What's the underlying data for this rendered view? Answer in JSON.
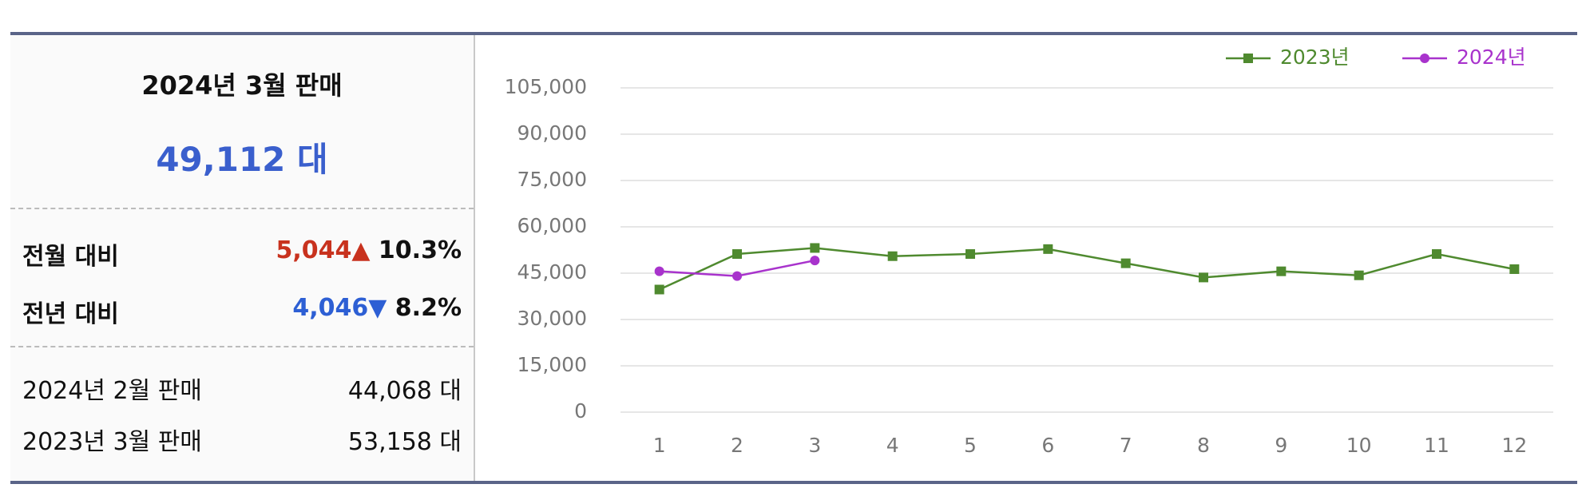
{
  "summary": {
    "title": "2024년 3월 판매",
    "total": "49,112 대",
    "rows": [
      {
        "label": "전월 대비",
        "change": "5,044",
        "arrow": "▲",
        "pct": "10.3%"
      },
      {
        "label": "전년 대비",
        "change": "4,046",
        "arrow": "▼",
        "pct": "8.2%"
      }
    ],
    "details": [
      {
        "label": "2024년 2월 판매",
        "value": "44,068 대"
      },
      {
        "label": "2023년 3월 판매",
        "value": "53,158 대"
      }
    ]
  },
  "chart_data": {
    "type": "line",
    "categories": [
      "1",
      "2",
      "3",
      "4",
      "5",
      "6",
      "7",
      "8",
      "9",
      "10",
      "11",
      "12"
    ],
    "series": [
      {
        "name": "2023년",
        "color": "#4f8a2f",
        "marker": "square",
        "values": [
          39700,
          51200,
          53158,
          50500,
          51200,
          52800,
          48200,
          43600,
          45600,
          44300,
          51200,
          46300
        ]
      },
      {
        "name": "2024년",
        "color": "#a833cc",
        "marker": "circle",
        "values": [
          45600,
          44068,
          49112,
          null,
          null,
          null,
          null,
          null,
          null,
          null,
          null,
          null
        ]
      }
    ],
    "ylim": [
      0,
      105000
    ],
    "yticks": [
      0,
      {
        "value": 15000,
        "label": "15,000"
      },
      {
        "value": 30000,
        "label": "30,000"
      },
      {
        "value": 45000,
        "label": "45,000"
      },
      {
        "value": 60000,
        "label": "60,000"
      },
      {
        "value": 75000,
        "label": "75,000"
      },
      {
        "value": 90000,
        "label": "90,000"
      },
      {
        "value": 105000,
        "label": "105,000"
      }
    ],
    "grid": true,
    "legend": "top-right"
  }
}
